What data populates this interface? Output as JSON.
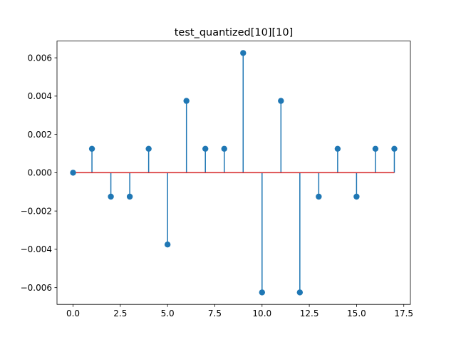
{
  "chart_data": {
    "type": "stem",
    "title": "test_quantized[10][10]",
    "xlabel": "",
    "ylabel": "",
    "x": [
      0,
      1,
      2,
      3,
      4,
      5,
      6,
      7,
      8,
      9,
      10,
      11,
      12,
      13,
      14,
      15,
      16,
      17
    ],
    "y": [
      0.0,
      0.00125,
      -0.00125,
      -0.00125,
      0.00125,
      -0.00375,
      0.00375,
      0.00125,
      0.00125,
      0.00625,
      -0.00625,
      0.00375,
      -0.00625,
      -0.00125,
      0.00125,
      -0.00125,
      0.00125,
      0.00125
    ],
    "xlim": [
      -0.85,
      17.85
    ],
    "ylim": [
      -0.006875,
      0.006875
    ],
    "xticks": [
      0.0,
      2.5,
      5.0,
      7.5,
      10.0,
      12.5,
      15.0,
      17.5
    ],
    "xtick_labels": [
      "0.0",
      "2.5",
      "5.0",
      "7.5",
      "10.0",
      "12.5",
      "15.0",
      "17.5"
    ],
    "yticks": [
      -0.006,
      -0.004,
      -0.002,
      0.0,
      0.002,
      0.004,
      0.006
    ],
    "ytick_labels": [
      "−0.006",
      "−0.004",
      "−0.002",
      "0.000",
      "0.002",
      "0.004",
      "0.006"
    ],
    "grid": false,
    "colors": {
      "stem": "#1f77b4",
      "marker": "#1f77b4",
      "baseline": "#d62728"
    }
  }
}
